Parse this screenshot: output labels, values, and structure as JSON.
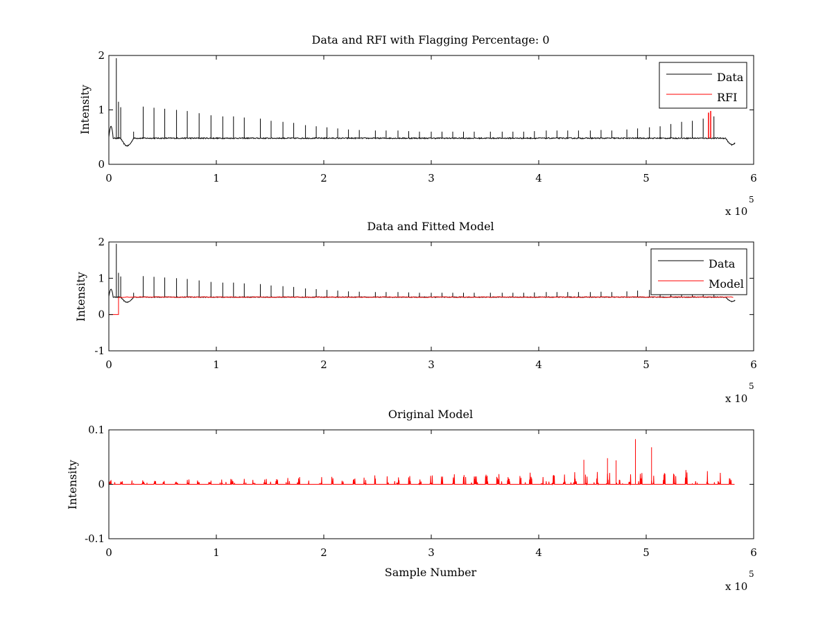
{
  "colors": {
    "data": "#000000",
    "rfi": "#ff0000",
    "model": "#ff0000",
    "background": "#ffffff"
  },
  "chart_data": [
    {
      "type": "line",
      "title": "Data and RFI with Flagging Percentage: 0",
      "xlabel": "",
      "ylabel": "Intensity",
      "xlim": [
        0,
        6
      ],
      "ylim": [
        0,
        2
      ],
      "xticks": [
        "0",
        "1",
        "2",
        "3",
        "4",
        "5",
        "6"
      ],
      "yticks": [
        "0",
        "1",
        "2"
      ],
      "x_multiplier": "x 10",
      "x_multiplier_exp": "5",
      "legend": {
        "position": "top-right",
        "entries": [
          "Data",
          "RFI"
        ]
      },
      "series": [
        {
          "name": "Data",
          "color": "#000000",
          "baseline": 0.48,
          "dips": [
            [
              0.17,
              0.34
            ],
            [
              5.8,
              0.36
            ]
          ],
          "spikes": [
            [
              0.07,
              1.95
            ],
            [
              0.09,
              1.15
            ],
            [
              0.11,
              1.05
            ],
            [
              0.23,
              0.6
            ],
            [
              0.32,
              1.06
            ],
            [
              0.42,
              1.04
            ],
            [
              0.52,
              1.02
            ],
            [
              0.63,
              1.0
            ],
            [
              0.73,
              0.98
            ],
            [
              0.84,
              0.94
            ],
            [
              0.95,
              0.9
            ],
            [
              1.06,
              0.88
            ],
            [
              1.16,
              0.88
            ],
            [
              1.26,
              0.86
            ],
            [
              1.41,
              0.84
            ],
            [
              1.51,
              0.8
            ],
            [
              1.62,
              0.78
            ],
            [
              1.72,
              0.76
            ],
            [
              1.83,
              0.72
            ],
            [
              1.93,
              0.7
            ],
            [
              2.03,
              0.68
            ],
            [
              2.13,
              0.66
            ],
            [
              2.23,
              0.64
            ],
            [
              2.33,
              0.63
            ],
            [
              2.48,
              0.62
            ],
            [
              2.58,
              0.62
            ],
            [
              2.69,
              0.62
            ],
            [
              2.79,
              0.61
            ],
            [
              2.89,
              0.6
            ],
            [
              3.0,
              0.6
            ],
            [
              3.1,
              0.6
            ],
            [
              3.2,
              0.6
            ],
            [
              3.3,
              0.6
            ],
            [
              3.4,
              0.6
            ],
            [
              3.55,
              0.6
            ],
            [
              3.66,
              0.6
            ],
            [
              3.76,
              0.6
            ],
            [
              3.86,
              0.6
            ],
            [
              3.96,
              0.61
            ],
            [
              4.07,
              0.62
            ],
            [
              4.17,
              0.62
            ],
            [
              4.27,
              0.62
            ],
            [
              4.37,
              0.62
            ],
            [
              4.48,
              0.62
            ],
            [
              4.58,
              0.63
            ],
            [
              4.68,
              0.62
            ],
            [
              4.82,
              0.64
            ],
            [
              4.92,
              0.66
            ],
            [
              5.03,
              0.68
            ],
            [
              5.13,
              0.7
            ],
            [
              5.23,
              0.74
            ],
            [
              5.33,
              0.78
            ],
            [
              5.43,
              0.8
            ],
            [
              5.53,
              0.84
            ],
            [
              5.63,
              0.88
            ]
          ]
        },
        {
          "name": "RFI",
          "color": "#ff0000",
          "spikes": [
            [
              5.58,
              0.95
            ],
            [
              5.6,
              0.98
            ]
          ]
        }
      ]
    },
    {
      "type": "line",
      "title": "Data and Fitted Model",
      "xlabel": "",
      "ylabel": "Intensity",
      "xlim": [
        0,
        6
      ],
      "ylim": [
        -1,
        2
      ],
      "xticks": [
        "0",
        "1",
        "2",
        "3",
        "4",
        "5",
        "6"
      ],
      "yticks": [
        "-1",
        "0",
        "1",
        "2"
      ],
      "x_multiplier": "x 10",
      "x_multiplier_exp": "5",
      "legend": {
        "position": "top-right",
        "entries": [
          "Data",
          "Model"
        ]
      },
      "series": [
        {
          "name": "Data",
          "color": "#000000"
        },
        {
          "name": "Model",
          "color": "#ff0000",
          "level": 0.48,
          "initial_level": 0.0,
          "step_at": 0.09
        }
      ]
    },
    {
      "type": "line",
      "title": "Original Model",
      "xlabel": "Sample Number",
      "ylabel": "Intensity",
      "xlim": [
        0,
        6
      ],
      "ylim": [
        -0.1,
        0.1
      ],
      "xticks": [
        "0",
        "1",
        "2",
        "3",
        "4",
        "5",
        "6"
      ],
      "yticks": [
        "-0.1",
        "0",
        "0.1"
      ],
      "x_multiplier": "x 10",
      "x_multiplier_exp": "5",
      "series": [
        {
          "color": "#ff0000",
          "baseline": 0.0,
          "x_end": 5.82,
          "tall_spikes": [
            [
              4.9,
              0.083
            ],
            [
              5.05,
              0.068
            ],
            [
              4.64,
              0.048
            ],
            [
              4.42,
              0.045
            ],
            [
              4.72,
              0.044
            ]
          ]
        }
      ]
    }
  ]
}
